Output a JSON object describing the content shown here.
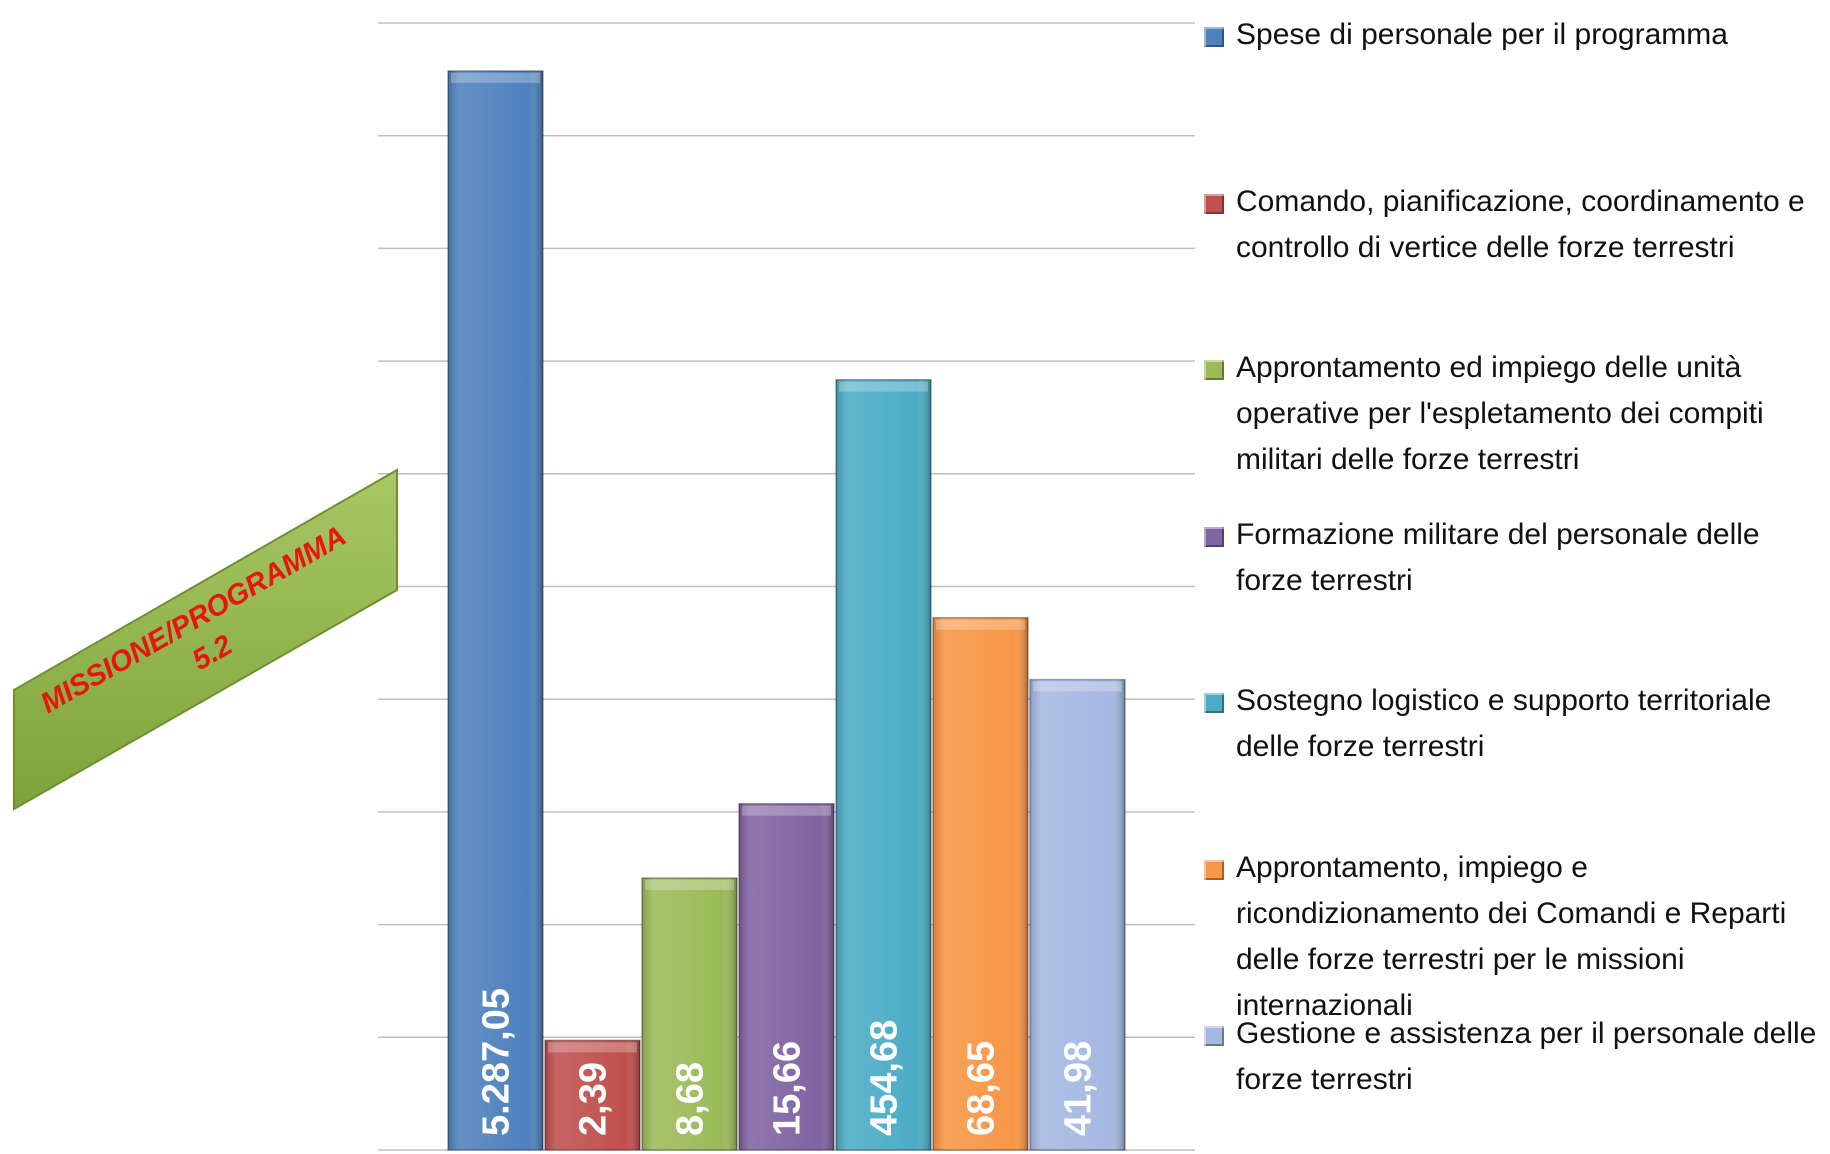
{
  "chart_data": {
    "type": "bar",
    "annotation": [
      "MISSIONE/PROGRAMMA",
      "5.2"
    ],
    "categories": [
      "Spese di personale per il programma",
      "Comando, pianificazione, coordinamento e controllo di vertice delle forze terrestri",
      "Approntamento ed impiego delle unità operative per l'espletamento dei compiti militari delle forze terrestri",
      "Formazione militare del personale delle forze terrestri",
      "Sostegno logistico e supporto territoriale delle forze terrestri",
      "Approntamento, impiego e ricondizionamento dei Comandi e Reparti delle forze terrestri per le missioni internazionali",
      "Gestione e assistenza per il personale delle forze terrestri"
    ],
    "values": [
      5287.05,
      2.39,
      8.68,
      15.66,
      454.68,
      68.65,
      41.98
    ],
    "value_labels": [
      "5.287,05",
      "2,39",
      "8,68",
      "15,66",
      "454,68",
      "68,65",
      "41,98"
    ],
    "colors": [
      "#4f81bd",
      "#c0504d",
      "#9bbb59",
      "#8064a2",
      "#4bacc6",
      "#f79646",
      "#a5b8e2"
    ],
    "ylim": [
      1,
      6000
    ],
    "log_scale": true,
    "grid": true,
    "legend": "right"
  }
}
